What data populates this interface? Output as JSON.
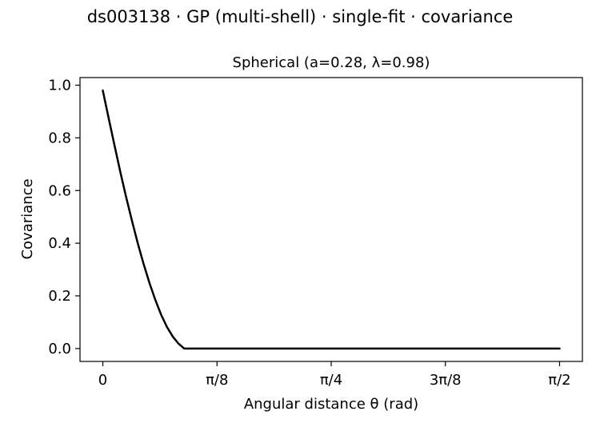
{
  "figure": {
    "suptitle": "ds003138 · GP (multi-shell) · single-fit · covariance"
  },
  "chart_data": {
    "type": "line",
    "title": "Spherical (a=0.28, λ=0.98)",
    "xlabel": "Angular distance θ (rad)",
    "ylabel": "Covariance",
    "xlim": [
      -0.0785,
      1.6493
    ],
    "ylim": [
      -0.049,
      1.029
    ],
    "x_ticks": [
      {
        "value": 0,
        "label": "0"
      },
      {
        "value": 0.3927,
        "label": "π/8"
      },
      {
        "value": 0.7854,
        "label": "π/4"
      },
      {
        "value": 1.1781,
        "label": "3π/8"
      },
      {
        "value": 1.5708,
        "label": "π/2"
      }
    ],
    "y_ticks": [
      {
        "value": 0.0,
        "label": "0.0"
      },
      {
        "value": 0.2,
        "label": "0.2"
      },
      {
        "value": 0.4,
        "label": "0.4"
      },
      {
        "value": 0.6,
        "label": "0.6"
      },
      {
        "value": 0.8,
        "label": "0.8"
      },
      {
        "value": 1.0,
        "label": "1.0"
      }
    ],
    "grid": false,
    "legend": "none",
    "series": [
      {
        "color": "#000000",
        "x": [
          0,
          0.02,
          0.04,
          0.06,
          0.08,
          0.1,
          0.12,
          0.14,
          0.16,
          0.18,
          0.2,
          0.22,
          0.24,
          0.26,
          0.28,
          0.4,
          0.6,
          0.8,
          1.0,
          1.2,
          1.4,
          1.5708
        ],
        "y": [
          0.98,
          0.875,
          0.772,
          0.672,
          0.576,
          0.486,
          0.401,
          0.322,
          0.25,
          0.186,
          0.13,
          0.083,
          0.046,
          0.019,
          0.0,
          0.0,
          0.0,
          0.0,
          0.0,
          0.0,
          0.0,
          0.0
        ]
      }
    ]
  }
}
